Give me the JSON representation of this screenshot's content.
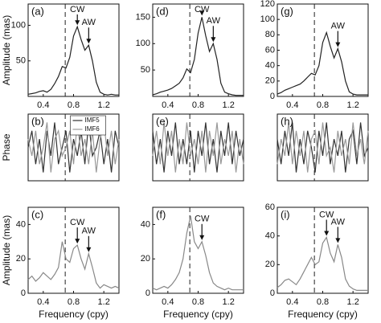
{
  "chart_data": [
    {
      "type": "line",
      "label": "(a)",
      "ylabel": "Amplitude (mas)",
      "x": [
        0.2,
        0.25,
        0.3,
        0.35,
        0.4,
        0.45,
        0.5,
        0.55,
        0.6,
        0.65,
        0.7,
        0.75,
        0.8,
        0.85,
        0.9,
        0.95,
        1.0,
        1.05,
        1.1,
        1.15,
        1.2,
        1.25,
        1.3,
        1.35,
        1.4
      ],
      "series": [
        {
          "color": "#222222",
          "values": [
            3,
            4,
            5,
            7,
            8,
            6,
            10,
            18,
            28,
            42,
            40,
            55,
            85,
            98,
            80,
            65,
            72,
            50,
            20,
            6,
            3,
            2,
            3,
            2,
            2
          ]
        }
      ],
      "xlim": [
        0.2,
        1.4
      ],
      "xticks": [
        0.4,
        0.8,
        1.2
      ],
      "ylim": [
        0,
        130
      ],
      "yticks": [
        50,
        100
      ],
      "vline": 0.69,
      "annotations": [
        {
          "text": "CW",
          "x": 0.85
        },
        {
          "text": "AW",
          "x": 1.0
        }
      ]
    },
    {
      "type": "line",
      "label": "(d)",
      "x": [
        0.2,
        0.25,
        0.3,
        0.35,
        0.4,
        0.45,
        0.5,
        0.55,
        0.6,
        0.65,
        0.7,
        0.75,
        0.8,
        0.85,
        0.9,
        0.95,
        1.0,
        1.05,
        1.1,
        1.15,
        1.2,
        1.25,
        1.3,
        1.35,
        1.4
      ],
      "series": [
        {
          "color": "#222222",
          "values": [
            3,
            5,
            8,
            10,
            12,
            15,
            20,
            25,
            35,
            52,
            45,
            70,
            120,
            150,
            115,
            85,
            100,
            70,
            25,
            8,
            5,
            3,
            2,
            2,
            2
          ]
        }
      ],
      "xlim": [
        0.2,
        1.4
      ],
      "xticks": [
        0.4,
        0.8,
        1.2
      ],
      "ylim": [
        0,
        175
      ],
      "yticks": [
        50,
        100,
        150
      ],
      "vline": 0.69,
      "annotations": [
        {
          "text": "CW",
          "x": 0.85
        },
        {
          "text": "AW",
          "x": 1.0
        }
      ]
    },
    {
      "type": "line",
      "label": "(g)",
      "x": [
        0.2,
        0.25,
        0.3,
        0.35,
        0.4,
        0.45,
        0.5,
        0.55,
        0.6,
        0.65,
        0.7,
        0.75,
        0.8,
        0.85,
        0.9,
        0.95,
        1.0,
        1.05,
        1.1,
        1.15,
        1.2,
        1.25,
        1.3,
        1.35,
        1.4
      ],
      "series": [
        {
          "color": "#222222",
          "values": [
            3,
            5,
            8,
            10,
            12,
            14,
            16,
            20,
            25,
            30,
            28,
            40,
            70,
            83,
            65,
            50,
            62,
            45,
            20,
            6,
            3,
            2,
            2,
            2,
            2
          ]
        }
      ],
      "xlim": [
        0.2,
        1.4
      ],
      "xticks": [
        0.4,
        0.8,
        1.2
      ],
      "ylim": [
        0,
        120
      ],
      "yticks": [
        0,
        20,
        40,
        60,
        80,
        100,
        120
      ],
      "vline": 0.69,
      "annotations": [
        {
          "text": "AW",
          "x": 1.0
        }
      ]
    },
    {
      "type": "line",
      "label": "(b)",
      "ylabel": "Phase",
      "legend": "top",
      "x": [
        0.2,
        0.25,
        0.3,
        0.35,
        0.4,
        0.45,
        0.5,
        0.55,
        0.6,
        0.65,
        0.7,
        0.75,
        0.8,
        0.85,
        0.9,
        0.95,
        1.0,
        1.05,
        1.1,
        1.15,
        1.2,
        1.25,
        1.3,
        1.35,
        1.4
      ],
      "series": [
        {
          "name": "IMF5",
          "color": "#333333",
          "values": [
            0,
            2,
            -2,
            1,
            -3,
            2,
            -1,
            3,
            -2,
            0,
            2,
            -3,
            1,
            -1,
            2,
            -2,
            3,
            -1,
            0,
            2,
            -2,
            1,
            -3,
            2,
            0
          ]
        },
        {
          "name": "IMF6",
          "color": "#999999",
          "values": [
            1,
            -1,
            2,
            -2,
            0,
            3,
            -3,
            1,
            2,
            -1,
            0,
            2,
            -2,
            3,
            -1,
            1,
            -2,
            2,
            -3,
            1,
            3,
            -1,
            2,
            -2,
            1
          ]
        }
      ],
      "xlim": [
        0.2,
        1.4
      ],
      "ylim": [
        -4,
        4
      ],
      "vline": 0.69
    },
    {
      "type": "line",
      "label": "(e)",
      "x": [
        0.2,
        0.25,
        0.3,
        0.35,
        0.4,
        0.45,
        0.5,
        0.55,
        0.6,
        0.65,
        0.7,
        0.75,
        0.8,
        0.85,
        0.9,
        0.95,
        1.0,
        1.05,
        1.1,
        1.15,
        1.2,
        1.25,
        1.3,
        1.35,
        1.4
      ],
      "series": [
        {
          "color": "#333333",
          "values": [
            2,
            -2,
            1,
            -3,
            2,
            -1,
            3,
            -2,
            1,
            -2,
            2,
            -3,
            2,
            -1,
            3,
            -2,
            1,
            -3,
            2,
            -1,
            3,
            -2,
            2,
            -1,
            1
          ]
        },
        {
          "color": "#999999",
          "values": [
            -1,
            2,
            -2,
            3,
            -1,
            2,
            -3,
            1,
            -2,
            3,
            -1,
            1,
            -2,
            2,
            -3,
            2,
            -1,
            3,
            -2,
            1,
            -1,
            2,
            -3,
            1,
            -2
          ]
        }
      ],
      "xlim": [
        0.2,
        1.4
      ],
      "ylim": [
        -4,
        4
      ],
      "vline": 0.69
    },
    {
      "type": "line",
      "label": "(h)",
      "x": [
        0.2,
        0.25,
        0.3,
        0.35,
        0.4,
        0.45,
        0.5,
        0.55,
        0.6,
        0.65,
        0.7,
        0.75,
        0.8,
        0.85,
        0.9,
        0.95,
        1.0,
        1.05,
        1.1,
        1.15,
        1.2,
        1.25,
        1.3,
        1.35,
        1.4
      ],
      "series": [
        {
          "color": "#333333",
          "values": [
            1,
            -2,
            2,
            -1,
            3,
            -3,
            1,
            -2,
            2,
            0,
            -3,
            2,
            -1,
            3,
            -2,
            1,
            -1,
            2,
            -3,
            1,
            2,
            -2,
            3,
            -1,
            0
          ]
        },
        {
          "color": "#999999",
          "values": [
            -2,
            1,
            -1,
            3,
            -2,
            2,
            -1,
            2,
            -3,
            1,
            2,
            -2,
            3,
            -1,
            0,
            -3,
            2,
            -1,
            1,
            -2,
            3,
            -1,
            1,
            -2,
            2
          ]
        }
      ],
      "xlim": [
        0.2,
        1.4
      ],
      "ylim": [
        -4,
        4
      ],
      "vline": 0.69
    },
    {
      "type": "line",
      "label": "(c)",
      "ylabel": "Amplitude (mas)",
      "xlabel": "Frequency (cpy)",
      "x": [
        0.2,
        0.25,
        0.3,
        0.35,
        0.4,
        0.45,
        0.5,
        0.55,
        0.6,
        0.65,
        0.7,
        0.75,
        0.8,
        0.85,
        0.9,
        0.95,
        1.0,
        1.05,
        1.1,
        1.15,
        1.2,
        1.25,
        1.3,
        1.35,
        1.4
      ],
      "series": [
        {
          "color": "#888888",
          "values": [
            8,
            10,
            7,
            9,
            12,
            10,
            8,
            11,
            15,
            30,
            20,
            18,
            26,
            28,
            20,
            14,
            23,
            15,
            6,
            3,
            5,
            4,
            3,
            4,
            3
          ]
        }
      ],
      "xlim": [
        0.2,
        1.4
      ],
      "xticks": [
        0.4,
        0.8,
        1.2
      ],
      "ylim": [
        0,
        50
      ],
      "yticks": [
        0,
        20,
        40
      ],
      "vline": 0.69,
      "annotations": [
        {
          "text": "CW",
          "x": 0.85
        },
        {
          "text": "AW",
          "x": 1.0
        }
      ]
    },
    {
      "type": "line",
      "label": "(f)",
      "xlabel": "Frequency (cpy)",
      "x": [
        0.2,
        0.25,
        0.3,
        0.35,
        0.4,
        0.45,
        0.5,
        0.55,
        0.6,
        0.65,
        0.7,
        0.75,
        0.8,
        0.85,
        0.9,
        0.95,
        1.0,
        1.05,
        1.1,
        1.15,
        1.2,
        1.25,
        1.3,
        1.35,
        1.4
      ],
      "series": [
        {
          "color": "#888888",
          "values": [
            3,
            2,
            3,
            4,
            3,
            5,
            8,
            12,
            20,
            35,
            45,
            30,
            26,
            30,
            22,
            12,
            6,
            4,
            3,
            2,
            3,
            2,
            2,
            2,
            2
          ]
        }
      ],
      "xlim": [
        0.2,
        1.4
      ],
      "xticks": [
        0.4,
        0.8,
        1.2
      ],
      "ylim": [
        0,
        50
      ],
      "yticks": [
        0,
        20,
        40
      ],
      "vline": 0.69,
      "annotations": [
        {
          "text": "CW",
          "x": 0.85
        }
      ]
    },
    {
      "type": "line",
      "label": "(i)",
      "xlabel": "Frequency (cpy)",
      "x": [
        0.2,
        0.25,
        0.3,
        0.35,
        0.4,
        0.45,
        0.5,
        0.55,
        0.6,
        0.65,
        0.7,
        0.75,
        0.8,
        0.85,
        0.9,
        0.95,
        1.0,
        1.05,
        1.1,
        1.15,
        1.2,
        1.25,
        1.3,
        1.35,
        1.4
      ],
      "series": [
        {
          "color": "#888888",
          "values": [
            4,
            6,
            9,
            10,
            8,
            6,
            10,
            15,
            20,
            25,
            20,
            22,
            35,
            39,
            28,
            22,
            34,
            25,
            10,
            5,
            3,
            2,
            2,
            2,
            2
          ]
        }
      ],
      "xlim": [
        0.2,
        1.4
      ],
      "xticks": [
        0.4,
        0.8,
        1.2
      ],
      "ylim": [
        0,
        60
      ],
      "yticks": [
        0,
        20,
        40,
        60
      ],
      "vline": 0.69,
      "annotations": [
        {
          "text": "CW",
          "x": 0.85
        },
        {
          "text": "AW",
          "x": 1.0
        }
      ]
    }
  ]
}
